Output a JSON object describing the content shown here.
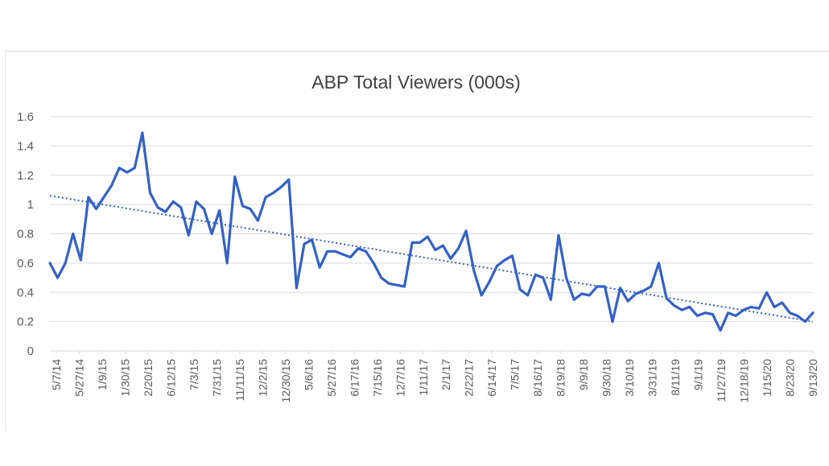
{
  "colors": {
    "line": "#3361C4",
    "trend": "#3361C4",
    "grid": "#d9d9d9",
    "text": "#595959",
    "title": "#404040"
  },
  "chart_data": {
    "type": "line",
    "title": "ABP Total Viewers (000s)",
    "xlabel": "",
    "ylabel": "",
    "ylim": [
      0,
      1.6
    ],
    "yticks": [
      "0",
      "0.2",
      "0.4",
      "0.6",
      "0.8",
      "1",
      "1.2",
      "1.4",
      "1.6"
    ],
    "grid": true,
    "legend": "none",
    "x_tick_labels": [
      "5/7/14",
      "5/27/14",
      "1/9/15",
      "1/30/15",
      "2/20/15",
      "6/12/15",
      "7/3/15",
      "7/31/15",
      "11/11/15",
      "12/2/15",
      "12/30/15",
      "5/6/16",
      "5/27/16",
      "6/17/16",
      "7/15/16",
      "12/7/16",
      "1/11/17",
      "2/1/17",
      "2/22/17",
      "6/14/17",
      "7/5/17",
      "8/16/17",
      "8/19/18",
      "9/9/18",
      "9/30/18",
      "3/10/19",
      "3/31/19",
      "8/11/19",
      "9/1/19",
      "11/27/19",
      "12/18/19",
      "1/15/20",
      "8/23/20",
      "9/13/20"
    ],
    "series": [
      {
        "values": [
          0.6,
          0.5,
          0.6,
          0.8,
          0.62,
          1.05,
          0.97,
          1.05,
          1.13,
          1.25,
          1.22,
          1.25,
          1.49,
          1.08,
          0.98,
          0.95,
          1.02,
          0.98,
          0.79,
          1.02,
          0.97,
          0.8,
          0.96,
          0.6,
          1.19,
          0.99,
          0.97,
          0.89,
          1.05,
          1.08,
          1.12,
          1.17,
          0.43,
          0.73,
          0.76,
          0.57,
          0.68,
          0.68,
          0.66,
          0.64,
          0.7,
          0.68,
          0.6,
          0.5,
          0.46,
          0.45,
          0.44,
          0.74,
          0.74,
          0.78,
          0.69,
          0.72,
          0.63,
          0.7,
          0.82,
          0.55,
          0.38,
          0.47,
          0.58,
          0.62,
          0.65,
          0.42,
          0.38,
          0.52,
          0.5,
          0.35,
          0.79,
          0.5,
          0.35,
          0.39,
          0.38,
          0.44,
          0.44,
          0.2,
          0.43,
          0.34,
          0.39,
          0.41,
          0.44,
          0.6,
          0.36,
          0.31,
          0.28,
          0.3,
          0.24,
          0.26,
          0.25,
          0.14,
          0.26,
          0.24,
          0.28,
          0.3,
          0.29,
          0.4,
          0.3,
          0.33,
          0.26,
          0.24,
          0.2,
          0.26
        ]
      },
      {
        "style": "dotted",
        "values": [
          1.06,
          0.2
        ]
      }
    ]
  }
}
